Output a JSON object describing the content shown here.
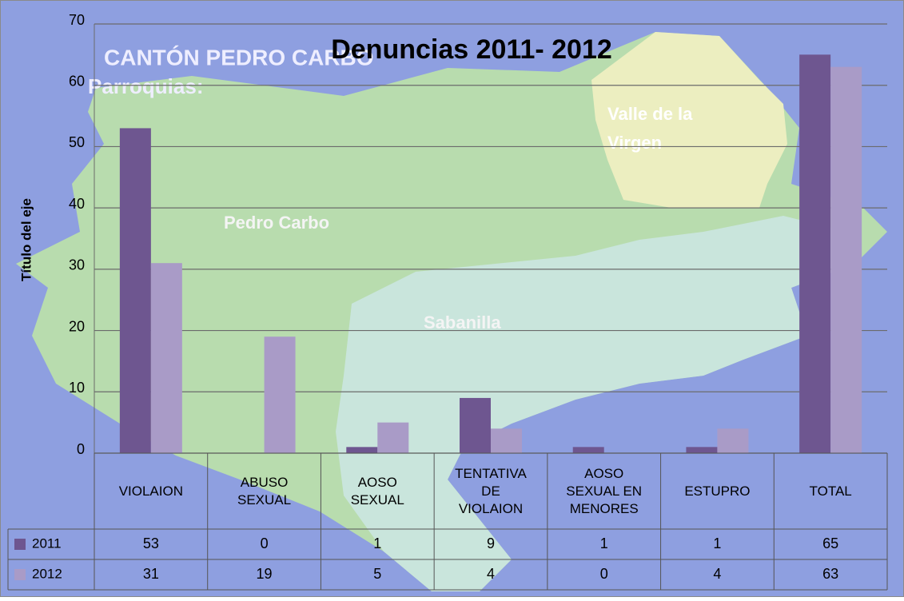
{
  "chart_data": {
    "type": "bar",
    "title": "Denuncias 2011- 2012",
    "y_axis_label": "Título del eje",
    "annotations": [
      "CANTÓN PEDRO CARBO",
      "Parroquias:",
      "Pedro Carbo",
      "Sabanilla",
      "Valle de la Virgen"
    ],
    "categories": [
      "VIOLAION",
      "ABUSO SEXUAL",
      "AOSO SEXUAL",
      "TENTATIVA DE VIOLAION",
      "AOSO SEXUAL EN MENORES",
      "ESTUPRO",
      "TOTAL"
    ],
    "series": [
      {
        "name": "2011",
        "color": "#6e5690",
        "values": [
          53,
          0,
          1,
          9,
          1,
          1,
          65
        ]
      },
      {
        "name": "2012",
        "color": "#a99bc7",
        "values": [
          31,
          19,
          5,
          4,
          0,
          4,
          63
        ]
      }
    ],
    "ylim": [
      0,
      70
    ],
    "yticks": [
      0,
      10,
      20,
      30,
      40,
      50,
      60,
      70
    ],
    "grid": true
  }
}
